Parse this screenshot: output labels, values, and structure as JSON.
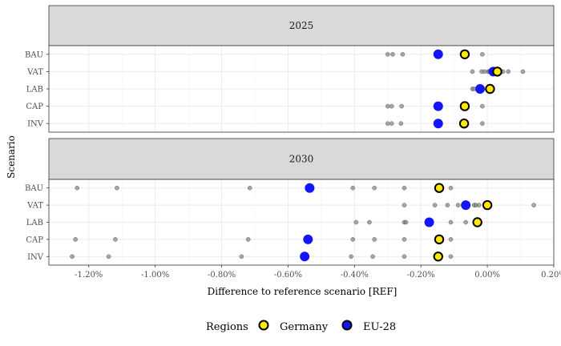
{
  "chart_data": {
    "type": "scatter",
    "title": "",
    "xlabel": "Difference to reference scenario [REF]",
    "ylabel": "Scenario",
    "xlim": [
      -1.32,
      0.2
    ],
    "x_ticks": [
      -1.2,
      -1.0,
      -0.8,
      -0.6,
      -0.4,
      -0.2,
      0.0,
      0.2
    ],
    "x_tick_labels": [
      "-1.20%",
      "-1.00%",
      "-0.80%",
      "-0.60%",
      "-0.40%",
      "-0.20%",
      "0.00%",
      "0.20%"
    ],
    "categories": [
      "BAU",
      "VAT",
      "LAB",
      "CAP",
      "INV"
    ],
    "grid": true,
    "legend": {
      "title": "Regions",
      "position": "bottom",
      "entries": [
        {
          "name": "Germany",
          "fill": "#FFE800",
          "stroke": "#000000"
        },
        {
          "name": "EU-28",
          "fill": "#1414FF",
          "stroke": "#000000"
        }
      ]
    },
    "colors": {
      "germany_fill": "#FFE800",
      "eu_fill": "#1414FF",
      "other": "#808080",
      "strip_bg": "#D9D9D9",
      "grid": "#EBEBEB"
    },
    "panels": [
      {
        "label": "2025",
        "rows": [
          {
            "scenario": "BAU",
            "germany": -0.068,
            "eu": -0.148,
            "others": [
              -0.3,
              -0.285,
              -0.255,
              -0.015
            ]
          },
          {
            "scenario": "VAT",
            "germany": 0.03,
            "eu": 0.018,
            "others": [
              -0.045,
              -0.017,
              -0.008,
              0.003,
              0.006,
              0.047,
              0.063,
              0.107
            ]
          },
          {
            "scenario": "LAB",
            "germany": 0.008,
            "eu": -0.022,
            "others": [
              -0.045,
              -0.04,
              -0.02
            ]
          },
          {
            "scenario": "CAP",
            "germany": -0.068,
            "eu": -0.148,
            "others": [
              -0.3,
              -0.288,
              -0.258,
              -0.015
            ]
          },
          {
            "scenario": "INV",
            "germany": -0.07,
            "eu": -0.148,
            "others": [
              -0.3,
              -0.288,
              -0.26,
              -0.015
            ]
          }
        ]
      },
      {
        "label": "2030",
        "rows": [
          {
            "scenario": "BAU",
            "germany": -0.145,
            "eu": -0.535,
            "others": [
              -1.235,
              -1.115,
              -0.715,
              -0.405,
              -0.34,
              -0.25,
              -0.11
            ]
          },
          {
            "scenario": "VAT",
            "germany": 0.0,
            "eu": -0.065,
            "others": [
              -0.25,
              -0.158,
              -0.12,
              -0.088,
              -0.04,
              -0.035,
              -0.025,
              0.14
            ]
          },
          {
            "scenario": "LAB",
            "germany": -0.03,
            "eu": -0.175,
            "others": [
              -0.395,
              -0.355,
              -0.25,
              -0.245,
              -0.11,
              -0.065
            ]
          },
          {
            "scenario": "CAP",
            "germany": -0.145,
            "eu": -0.54,
            "others": [
              -1.24,
              -1.12,
              -0.72,
              -0.405,
              -0.34,
              -0.25,
              -0.11
            ]
          },
          {
            "scenario": "INV",
            "germany": -0.148,
            "eu": -0.55,
            "others": [
              -1.25,
              -1.14,
              -0.74,
              -0.41,
              -0.345,
              -0.25,
              -0.11
            ]
          }
        ]
      }
    ]
  }
}
